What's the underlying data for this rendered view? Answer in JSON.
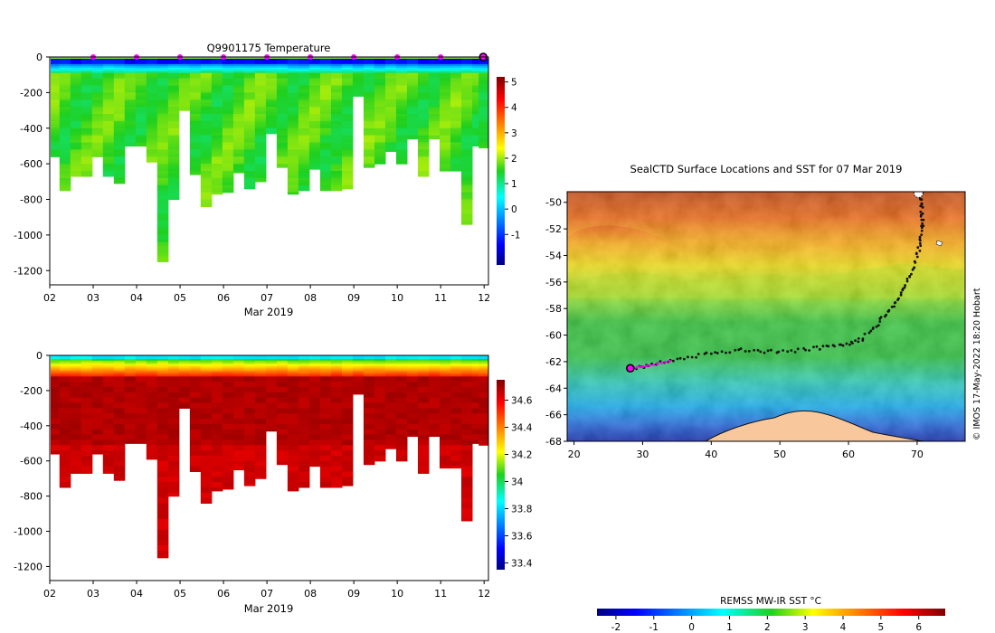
{
  "chart_data": [
    {
      "id": "temp",
      "type": "heatmap",
      "title": "Q9901175  Temperature",
      "xlabel": "Mar 2019",
      "ylabel": "",
      "x_tick_labels": [
        "02",
        "03",
        "04",
        "05",
        "06",
        "07",
        "08",
        "09",
        "10",
        "11",
        "12"
      ],
      "y_ticks": [
        0,
        -200,
        -400,
        -600,
        -800,
        -1000,
        -1200
      ],
      "ylim": [
        -1280,
        0
      ],
      "xlim": [
        2.0,
        12.1
      ],
      "profile_dates": [
        2.1,
        2.35,
        2.6,
        2.85,
        3.1,
        3.35,
        3.6,
        3.85,
        4.1,
        4.35,
        4.6,
        4.85,
        5.1,
        5.35,
        5.6,
        5.85,
        6.1,
        6.35,
        6.6,
        6.85,
        7.1,
        7.35,
        7.6,
        7.85,
        8.1,
        8.35,
        8.6,
        8.85,
        9.1,
        9.35,
        9.6,
        9.85,
        10.1,
        10.35,
        10.6,
        10.85,
        11.1,
        11.35,
        11.6,
        11.85,
        12.0
      ],
      "profile_max_depth": [
        560,
        745,
        670,
        670,
        560,
        670,
        705,
        500,
        500,
        590,
        1150,
        795,
        300,
        660,
        835,
        770,
        760,
        645,
        740,
        700,
        430,
        615,
        765,
        745,
        630,
        745,
        750,
        735,
        215,
        615,
        600,
        530,
        595,
        460,
        670,
        455,
        635,
        640,
        940,
        495,
        510
      ],
      "marker_dates": [
        3,
        4,
        5,
        6,
        7,
        8,
        9,
        10,
        11
      ],
      "colorbar": {
        "ticks": [
          -1,
          0,
          1,
          2,
          3,
          4,
          5
        ],
        "range": [
          -2.2,
          5.2
        ]
      },
      "surface_temperature": 1.8,
      "subsurface_min_temperature": -1.5,
      "deep_temperature": 1.5
    },
    {
      "id": "salinity",
      "type": "heatmap",
      "title": "",
      "xlabel": "Mar 2019",
      "ylabel": "",
      "x_tick_labels": [
        "02",
        "03",
        "04",
        "05",
        "06",
        "07",
        "08",
        "09",
        "10",
        "11",
        "12"
      ],
      "y_ticks": [
        0,
        -200,
        -400,
        -600,
        -800,
        -1000,
        -1200
      ],
      "ylim": [
        -1280,
        0
      ],
      "xlim": [
        2.0,
        12.1
      ],
      "colorbar": {
        "ticks": [
          33.4,
          33.6,
          33.8,
          34,
          34.2,
          34.4,
          34.6
        ],
        "tick_labels": [
          "33.4",
          "33.6",
          "33.8",
          "34",
          "34.2",
          "34.4",
          "34.6"
        ],
        "range": [
          33.35,
          34.75
        ]
      },
      "surface_salinity": 33.8,
      "deep_salinity": 34.72
    },
    {
      "id": "sst_map",
      "type": "heatmap",
      "title": "SealCTD Surface Locations and SST for 07 Mar 2019",
      "x_tick_labels": [
        "20",
        "30",
        "40",
        "50",
        "60",
        "70"
      ],
      "y_tick_labels": [
        "-50",
        "-52",
        "-54",
        "-56",
        "-58",
        "-60",
        "-62",
        "-64",
        "-66",
        "-68"
      ],
      "xlim": [
        19,
        77
      ],
      "ylim": [
        -68,
        -49.2
      ],
      "track": [
        [
          70.2,
          -49.3
        ],
        [
          70.6,
          -50.2
        ],
        [
          70.8,
          -51.5
        ],
        [
          70.5,
          -53
        ],
        [
          69.6,
          -54.8
        ],
        [
          68.3,
          -56.3
        ],
        [
          66.5,
          -57.8
        ],
        [
          64.5,
          -59
        ],
        [
          62,
          -60.3
        ],
        [
          59,
          -60.8
        ],
        [
          55,
          -61
        ],
        [
          50,
          -61.3
        ],
        [
          45,
          -61.1
        ],
        [
          40,
          -61.4
        ],
        [
          35,
          -61.8
        ],
        [
          31,
          -62.3
        ],
        [
          28.2,
          -62.5
        ]
      ],
      "magenta_segment": [
        [
          28.2,
          -62.5
        ],
        [
          31,
          -62.3
        ],
        [
          34.5,
          -61.9
        ]
      ],
      "start_marker": [
        28.2,
        -62.5
      ],
      "end_marker": [
        70.2,
        -49.3
      ],
      "colorbar": {
        "label": "REMSS MW-IR SST °C",
        "ticks": [
          -2,
          -1,
          0,
          1,
          2,
          3,
          4,
          5,
          6
        ],
        "range": [
          -2.5,
          6.7
        ]
      },
      "side_text": "© IMOS 17-May-2022 18:20 Hobart"
    }
  ]
}
